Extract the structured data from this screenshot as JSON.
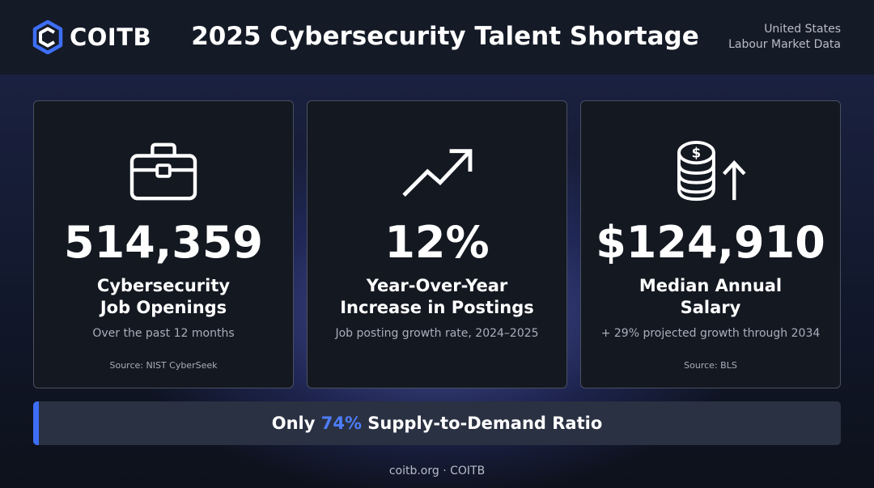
{
  "header": {
    "logo_text": "COITB",
    "title": "2025 Cybersecurity Talent Shortage",
    "region_line1": "United States",
    "region_line2": "Labour Market Data"
  },
  "cards": [
    {
      "icon": "briefcase-icon",
      "value": "514,359",
      "label_line1": "Cybersecurity",
      "label_line2": "Job Openings",
      "sub": "Over the past 12 months",
      "source": "Source: NIST CyberSeek"
    },
    {
      "icon": "trending-up-icon",
      "value": "12%",
      "label_line1": "Year-Over-Year",
      "label_line2": "Increase in Postings",
      "sub": "Job posting growth rate, 2024–2025",
      "source": ""
    },
    {
      "icon": "coins-up-icon",
      "value": "$124,910",
      "label_line1": "Median Annual",
      "label_line2": "Salary",
      "sub": "+ 29% projected growth through 2034",
      "source": "Source: BLS"
    }
  ],
  "banner": {
    "prefix": "Only ",
    "highlight": "74%",
    "suffix": " Supply-to-Demand Ratio"
  },
  "footer": {
    "text": "coitb.org · COITB"
  },
  "colors": {
    "accent": "#3d6ef5",
    "highlight": "#4d7df7",
    "background": "#0d111b",
    "card": "#141821"
  }
}
